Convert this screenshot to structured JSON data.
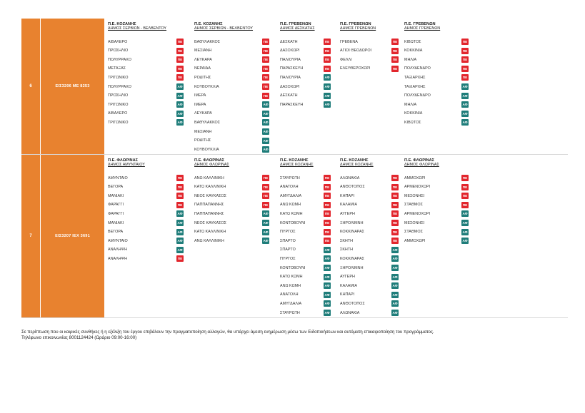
{
  "colors": {
    "accent": "#e8822f",
    "pe_badge": "#e2262d",
    "af_badge": "#1f7d7a"
  },
  "rows": [
    {
      "number": "6",
      "code": "ΕΙΣ3206  ΜΕ 8253",
      "columns": [
        {
          "region": "Π.Ε. ΚΟΖΑΝΗΣ",
          "municipality": "ΔΗΜΟΣ ΣΕΡΒΙΩΝ - ΒΕΛΒΕΝΤΟΥ",
          "stops": [
            [
              "ΑΙΒΑΛΕΡΟ",
              "ΠΕ"
            ],
            [
              "ΠΡΟΣΗΛΙΟ",
              "ΠΕ"
            ],
            [
              "ΠΟΛΥΡΡΑΧΟ",
              "ΠΕ"
            ],
            [
              "ΜΕΤΑΞΑΣ",
              "ΠΕ"
            ],
            [
              "ΤΡΙΓΩΝΙΚΟ",
              "ΠΕ"
            ],
            [
              "ΠΟΛΥΡΡΑΧΟ",
              "ΑΦ"
            ],
            [
              "ΠΡΟΣΗΛΙΟ",
              "ΑΦ"
            ],
            [
              "ΤΡΙΓΩΝΙΚΟ",
              "ΑΦ"
            ],
            [
              "ΑΙΒΑΛΕΡΟ",
              "ΑΦ"
            ],
            [
              "ΤΡΙΓΩΝΙΚΟ",
              "ΑΦ"
            ]
          ]
        },
        {
          "region": "Π.Ε. ΚΟΖΑΝΗΣ",
          "municipality": "ΔΗΜΟΣ ΣΕΡΒΙΩΝ - ΒΕΛΒΕΝΤΟΥ",
          "stops": [
            [
              "ΒΑΘΥΛΑΚΚΟΣ",
              "ΠΕ"
            ],
            [
              "ΜΕΣΙΑΝΗ",
              "ΠΕ"
            ],
            [
              "ΛΕΥΚΑΡΑ",
              "ΠΕ"
            ],
            [
              "ΝΕΡΑΙΔΑ",
              "ΠΕ"
            ],
            [
              "ΡΟΔΙΤΗΣ",
              "ΠΕ"
            ],
            [
              "ΚΟΥΒΟΥΚΛΙΑ",
              "ΠΕ"
            ],
            [
              "ΙΜΕΡΑ",
              "ΠΕ"
            ],
            [
              "ΙΜΕΡΑ",
              "ΑΦ"
            ],
            [
              "ΛΕΥΚΑΡΑ",
              "ΑΦ"
            ],
            [
              "ΒΑΘΥΛΑΚΚΟΣ",
              "ΑΦ"
            ],
            [
              "ΜΕΣΙΑΝΗ",
              "ΑΦ"
            ],
            [
              "ΡΟΔΙΤΗΣ",
              "ΑΦ"
            ],
            [
              "ΚΟΥΒΟΥΚΛΙΑ",
              "ΑΦ"
            ]
          ]
        },
        {
          "region": "Π.Ε. ΓΡΕΒΕΝΩΝ",
          "municipality": "ΔΗΜΟΣ ΔΕΣΚΑΤΗΣ",
          "stops": [
            [
              "ΔΕΣΚΑΤΗ",
              "ΠΕ"
            ],
            [
              "ΔΑΣΟΧΩΡΙ",
              "ΠΕ"
            ],
            [
              "ΠΑΛΙΟΥΡΙΑ",
              "ΠΕ"
            ],
            [
              "ΠΑΡΑΣΚΕΥΗ",
              "ΠΕ"
            ],
            [
              "ΠΑΛΙΟΥΡΙΑ",
              "ΑΦ"
            ],
            [
              "ΔΑΣΟΧΩΡΙ",
              "ΑΦ"
            ],
            [
              "ΔΕΣΚΑΤΗ",
              "ΑΦ"
            ],
            [
              "ΠΑΡΑΣΚΕΥΗ",
              "ΑΦ"
            ]
          ]
        },
        {
          "region": "Π.Ε. ΓΡΕΒΕΝΩΝ",
          "municipality": "ΔΗΜΟΣ ΓΡΕΒΕΝΩΝ",
          "stops": [
            [
              "ΓΡΕΒΕΝΑ",
              "ΠΕ"
            ],
            [
              "ΑΓΙΟΙ ΘΕΟΔΩΡΟΙ",
              "ΠΕ"
            ],
            [
              "ΦΕΛΛΙ",
              "ΠΕ"
            ],
            [
              "ΕΛΕΥΘΕΡΟΧΩΡΙ",
              "ΠΕ"
            ]
          ]
        },
        {
          "region": "Π.Ε. ΓΡΕΒΕΝΩΝ",
          "municipality": "ΔΗΜΟΣ ΓΡΕΒΕΝΩΝ",
          "stops": [
            [
              "ΚΙΒΩΤΟΣ",
              "ΠΕ"
            ],
            [
              "ΚΟΚΚΙΝΙΑ",
              "ΠΕ"
            ],
            [
              "ΜΗΛΙΑ",
              "ΠΕ"
            ],
            [
              "ΠΟΛΥΔΕΝΔΡΟ",
              "ΠΕ"
            ],
            [
              "ΤΑΞΙΑΡΧΗΣ",
              "ΠΕ"
            ],
            [
              "ΤΑΞΙΑΡΧΗΣ",
              "ΑΦ"
            ],
            [
              "ΠΟΛΥΔΕΝΔΡΟ",
              "ΑΦ"
            ],
            [
              "ΜΗΛΙΑ",
              "ΑΦ"
            ],
            [
              "ΚΟΚΚΙΝΙΑ",
              "ΑΦ"
            ],
            [
              "ΚΙΒΩΤΟΣ",
              "ΑΦ"
            ]
          ]
        }
      ]
    },
    {
      "number": "7",
      "code": "ΕΙΣ3207  ΙΕΧ 3691",
      "columns": [
        {
          "region": "Π.Ε. ΦΛΩΡΙΝΑΣ",
          "municipality": "ΔΗΜΟΣ ΑΜΥΝΤΑΙΟΥ",
          "stops": [
            [
              "ΑΜΥΝΤΑΙΟ",
              "ΠΕ"
            ],
            [
              "ΒΕΓΟΡΑ",
              "ΠΕ"
            ],
            [
              "ΜΑΝΙΑΚΙ",
              "ΠΕ"
            ],
            [
              "ΦΑΡΑΓΓΙ",
              "ΠΕ"
            ],
            [
              "ΦΑΡΑΓΓΙ",
              "ΑΦ"
            ],
            [
              "ΜΑΝΙΑΚΙ",
              "ΑΦ"
            ],
            [
              "ΒΕΓΟΡΑ",
              "ΑΦ"
            ],
            [
              "ΑΜΥΝΤΑΙΟ",
              "ΑΦ"
            ],
            [
              "ΑΝΑΛΗΨΗ",
              "ΑΦ"
            ],
            [
              "ΑΝΑΛΗΨΗ",
              "ΠΕ"
            ]
          ]
        },
        {
          "region": "Π.Ε. ΦΛΩΡΙΝΑΣ",
          "municipality": "ΔΗΜΟΣ ΦΛΩΡΙΝΑΣ",
          "stops": [
            [
              "ΑΝΩ ΚΑΛΛΙΝΙΚΗ",
              "ΠΕ"
            ],
            [
              "ΚΑΤΩ ΚΑΛΛΙΝΙΚΗ",
              "ΠΕ"
            ],
            [
              "ΝΕΟΣ ΚΑΥΚΑΣΟΣ",
              "ΠΕ"
            ],
            [
              "ΠΑΠΠΑΠΑΝΝΗΣ",
              "ΠΕ"
            ],
            [
              "ΠΑΠΠΑΠΑΝΝΗΣ",
              "ΑΦ"
            ],
            [
              "ΝΕΟΣ ΚΑΥΚΑΣΟΣ",
              "ΑΦ"
            ],
            [
              "ΚΑΤΩ ΚΑΛΛΙΝΙΚΗ",
              "ΑΦ"
            ],
            [
              "ΑΝΩ ΚΑΛΛΙΝΙΚΗ",
              "ΑΦ"
            ]
          ]
        },
        {
          "region": "Π.Ε. ΚΟΖΑΝΗΣ",
          "municipality": "ΔΗΜΟΣ ΚΟΖΑΝΗΣ",
          "stops": [
            [
              "ΣΤΑΥΡΩΤΗ",
              "ΠΕ"
            ],
            [
              "ΑΝΑΤΟΛΗ",
              "ΠΕ"
            ],
            [
              "ΑΜΥΓΔΑΛΙΑ",
              "ΠΕ"
            ],
            [
              "ΑΝΩ ΚΩΜΗ",
              "ΠΕ"
            ],
            [
              "ΚΑΤΩ ΚΩΜΗ",
              "ΠΕ"
            ],
            [
              "ΚΟΝΤΟΒΟΥΝΙ",
              "ΠΕ"
            ],
            [
              "ΠΥΡΓΟΣ",
              "ΠΕ"
            ],
            [
              "ΣΠΑΡΤΟ",
              "ΠΕ"
            ],
            [
              "ΣΠΑΡΤΟ",
              "ΑΦ"
            ],
            [
              "ΠΥΡΓΟΣ",
              "ΑΦ"
            ],
            [
              "ΚΟΝΤΟΒΟΥΝΙ",
              "ΑΦ"
            ],
            [
              "ΚΑΤΩ ΚΩΜΗ",
              "ΑΦ"
            ],
            [
              "ΑΝΩ ΚΩΜΗ",
              "ΑΦ"
            ],
            [
              "ΑΝΑΤΟΛΗ",
              "ΑΦ"
            ],
            [
              "ΑΜΥΓΔΑΛΙΑ",
              "ΑΦ"
            ],
            [
              "ΣΤΑΥΡΩΤΗ",
              "ΑΦ"
            ]
          ]
        },
        {
          "region": "Π.Ε. ΚΟΖΑΝΗΣ",
          "municipality": "ΔΗΜΟΣ ΚΟΖΑΝΗΣ",
          "stops": [
            [
              "ΑΛΩΝΑΚΙΑ",
              "ΠΕ"
            ],
            [
              "ΑΝΘΟΤΟΠΟΣ",
              "ΠΕ"
            ],
            [
              "ΚΗΠΑΡΙ",
              "ΠΕ"
            ],
            [
              "ΚΑΛΑΜΙΑ",
              "ΠΕ"
            ],
            [
              "ΑΥΓΕΡΗ",
              "ΠΕ"
            ],
            [
              "ΞΗΡΟΛΙΜΝΗ",
              "ΠΕ"
            ],
            [
              "ΚΟΚΚΙΝΑΡΑΣ",
              "ΠΕ"
            ],
            [
              "ΣΚΗΤΗ",
              "ΠΕ"
            ],
            [
              "ΣΚΗΤΗ",
              "ΑΦ"
            ],
            [
              "ΚΟΚΚΙΝΑΡΑΣ",
              "ΑΦ"
            ],
            [
              "ΞΗΡΟΛΙΜΝΗ",
              "ΑΦ"
            ],
            [
              "ΑΥΓΕΡΗ",
              "ΑΦ"
            ],
            [
              "ΚΑΛΑΜΙΑ",
              "ΑΦ"
            ],
            [
              "ΚΗΠΑΡΙ",
              "ΑΦ"
            ],
            [
              "ΑΝΘΟΤΟΠΟΣ",
              "ΑΦ"
            ],
            [
              "ΑΛΩΝΑΚΙΑ",
              "ΑΦ"
            ]
          ]
        },
        {
          "region": "Π.Ε. ΦΛΩΡΙΝΑΣ",
          "municipality": "ΔΗΜΟΣ ΦΛΩΡΙΝΑΣ",
          "stops": [
            [
              "ΑΜΜΟΧΩΡΙ",
              "ΠΕ"
            ],
            [
              "ΑΡΜΕΝΟΧΩΡΙ",
              "ΠΕ"
            ],
            [
              "ΜΕΣΟΝΗΣΙ",
              "ΠΕ"
            ],
            [
              "ΣΤΑΘΜΟΣ",
              "ΠΕ"
            ],
            [
              "ΑΡΜΕΝΟΧΩΡΙ",
              "ΑΦ"
            ],
            [
              "ΜΕΣΟΝΗΣΙ",
              "ΑΦ"
            ],
            [
              "ΣΤΑΘΜΟΣ",
              "ΑΦ"
            ],
            [
              "ΑΜΜΟΧΩΡΙ",
              "ΑΦ"
            ]
          ]
        }
      ]
    }
  ],
  "footer": {
    "line1": "Σε περίπτωση που οι καιρικές συνθήκες ή η εξέλιξη του έργου επιβάλουν την πραγματοποίηση αλλαγών, θα υπάρχει άμεση ενημέρωση μέσω των Ειδοποιήσεων και αυτόματη επικαιροποίηση του προγράμματος.",
    "line2": "Τηλέφωνο επικοινωνίας 8001124424 (Ωράριο 09:00-16:00)"
  }
}
